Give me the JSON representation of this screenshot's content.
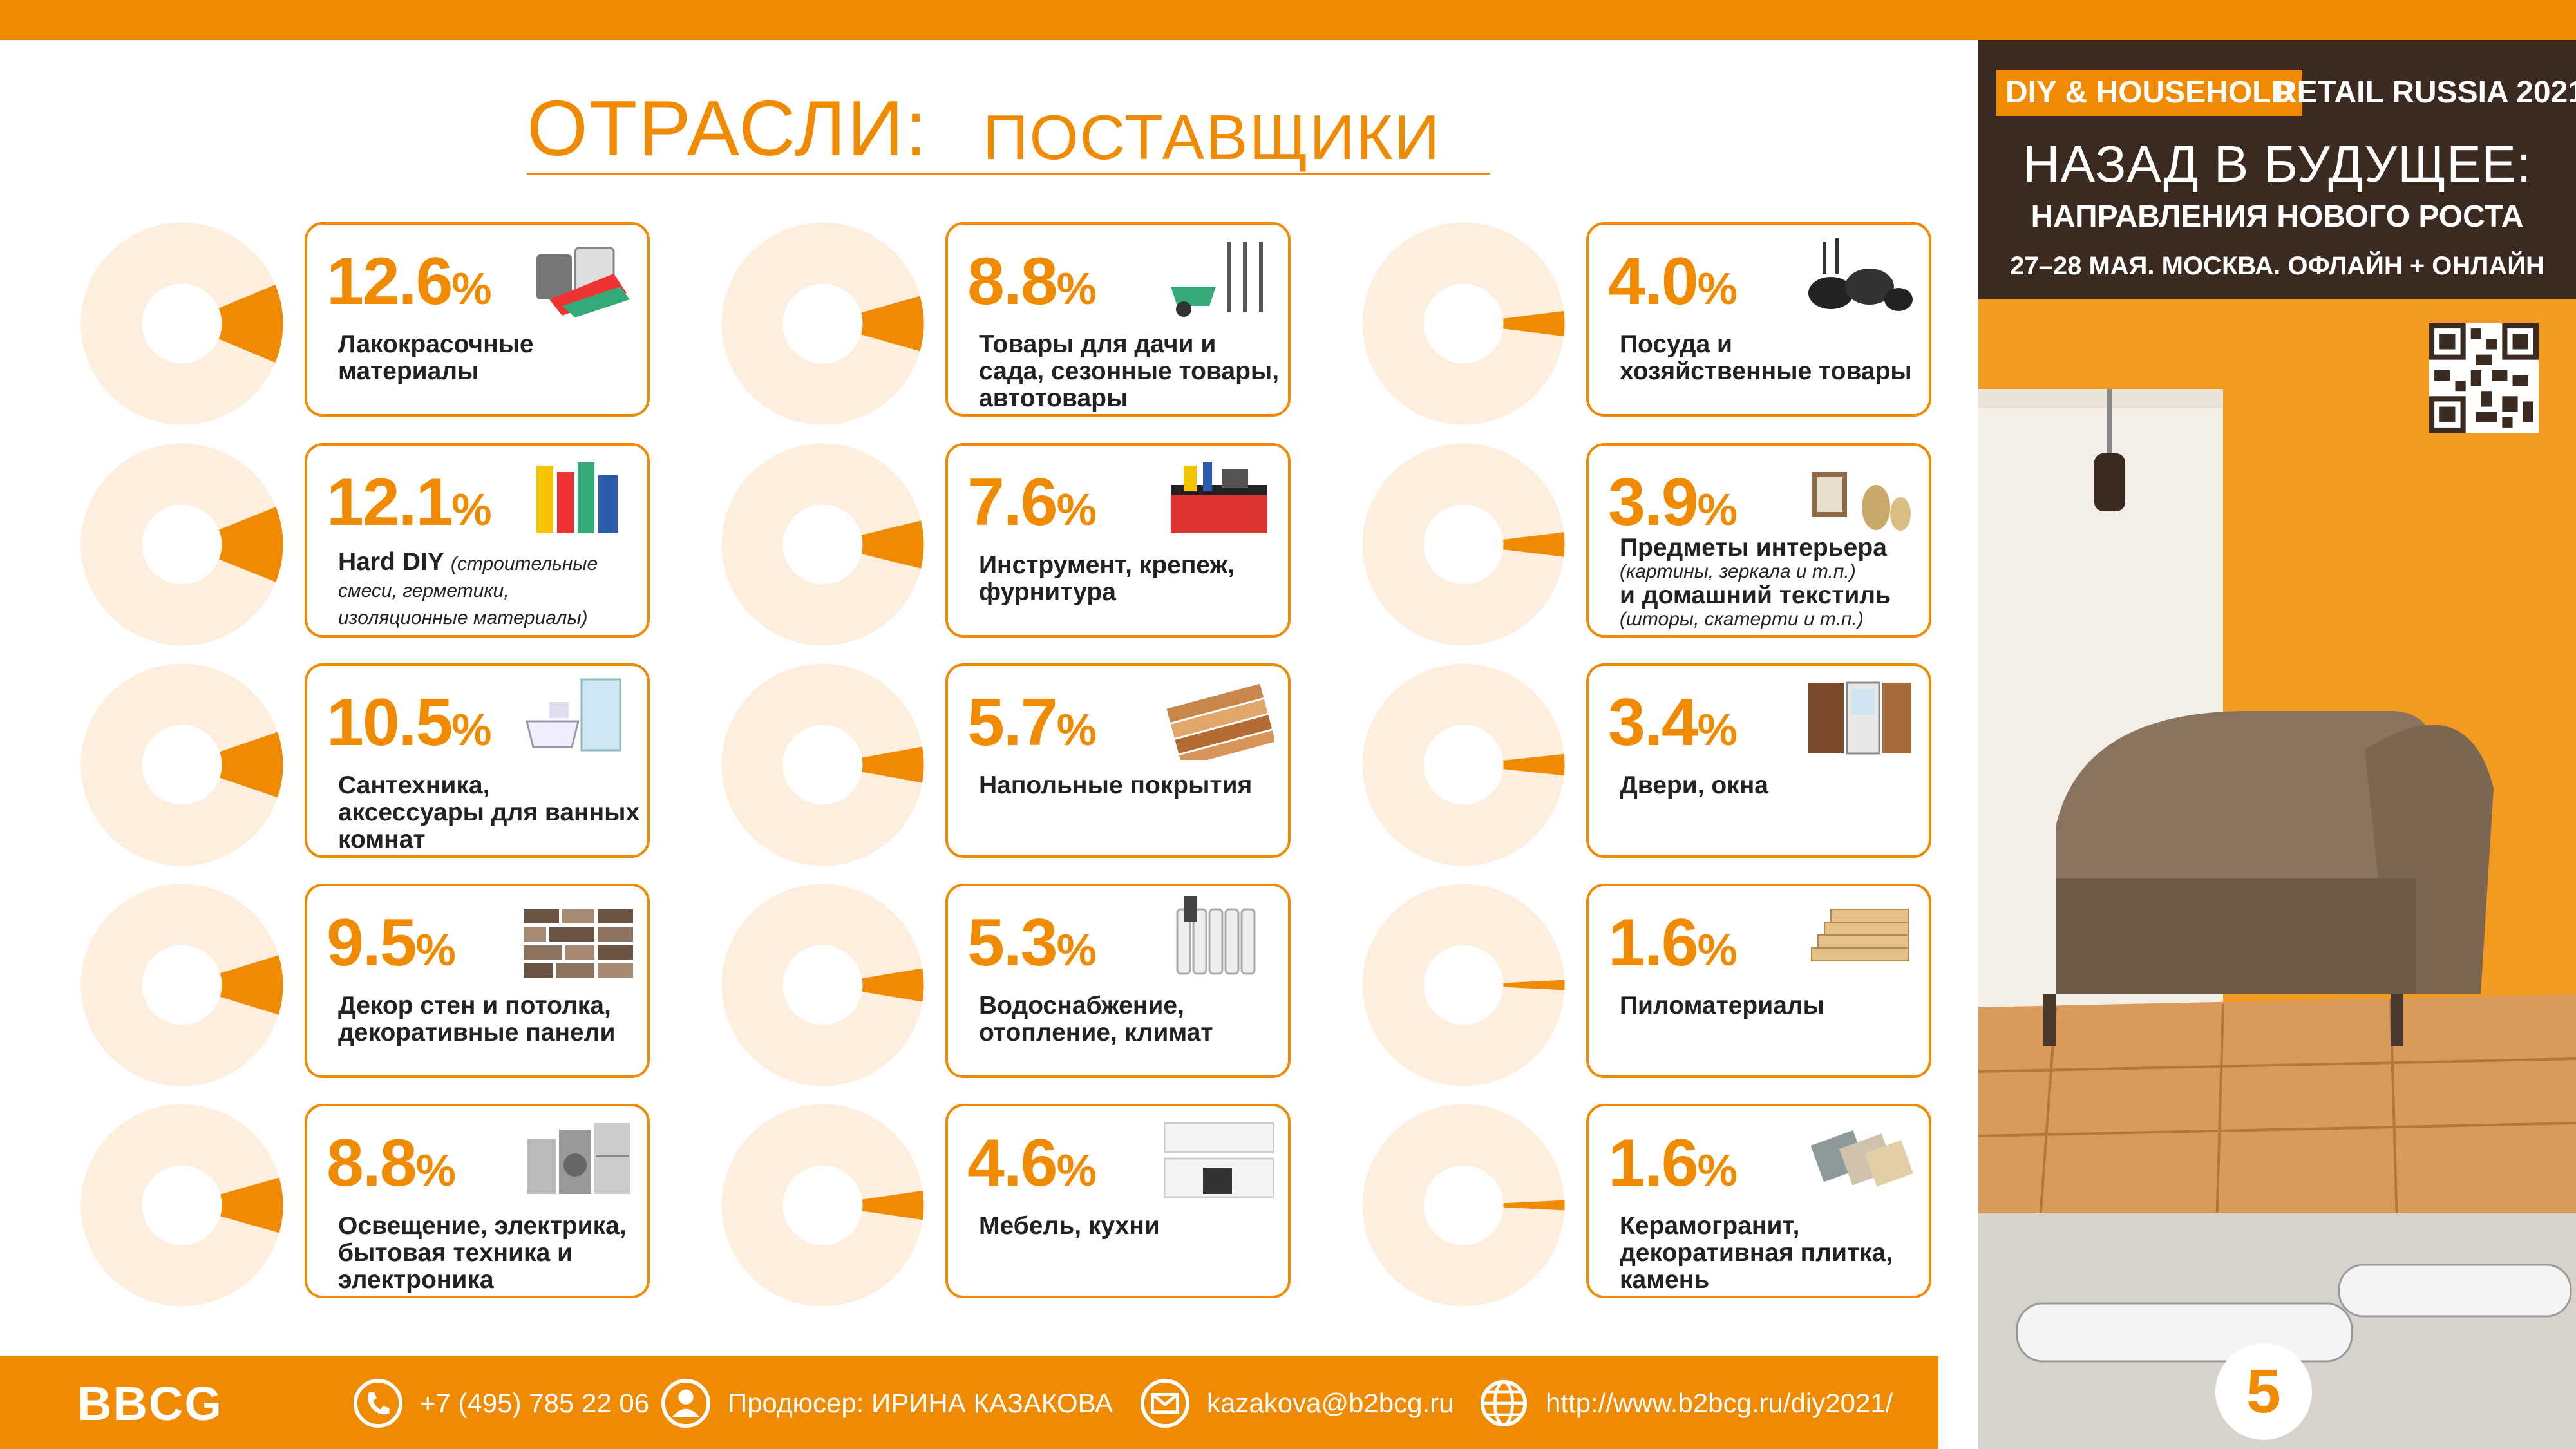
{
  "title": {
    "main": "ОТРАСЛИ:",
    "sub": "ПОСТАВЩИКИ"
  },
  "colors": {
    "accent": "#f08a00",
    "donut_bg": "#fdeede",
    "text": "#222222",
    "dark": "#3a2a20"
  },
  "categories": [
    {
      "pct": "12.6",
      "sign": "%",
      "label": "Лакокрасочные материалы",
      "note": "",
      "share": 12.6,
      "icon": "paint-cans-icon"
    },
    {
      "pct": "12.1",
      "sign": "%",
      "label": "Hard DIY",
      "note": "(строительные смеси, герметики, изоляционные материалы)",
      "share": 12.1,
      "icon": "sealant-tubes-icon"
    },
    {
      "pct": "10.5",
      "sign": "%",
      "label": "Сантехника, аксессуары для ванных комнат",
      "note": "",
      "share": 10.5,
      "icon": "bathroom-fixtures-icon"
    },
    {
      "pct": "9.5",
      "sign": "%",
      "label": "Декор стен и потолка, декоративные панели",
      "note": "",
      "share": 9.5,
      "icon": "wall-panel-icon"
    },
    {
      "pct": "8.8",
      "sign": "%",
      "label": "Освещение, электрика, бытовая техника и электроника",
      "note": "",
      "share": 8.8,
      "icon": "home-appliances-icon"
    },
    {
      "pct": "8.8",
      "sign": "%",
      "label": "Товары для дачи и сада, сезонные товары, автотовары",
      "note": "",
      "share": 8.8,
      "icon": "garden-tools-icon"
    },
    {
      "pct": "7.6",
      "sign": "%",
      "label": "Инструмент, крепеж, фурнитура",
      "note": "",
      "share": 7.6,
      "icon": "toolbox-icon"
    },
    {
      "pct": "5.7",
      "sign": "%",
      "label": "Напольные покрытия",
      "note": "",
      "share": 5.7,
      "icon": "floor-planks-icon"
    },
    {
      "pct": "5.3",
      "sign": "%",
      "label": "Водоснабжение, отопление, климат",
      "note": "",
      "share": 5.3,
      "icon": "radiator-icon"
    },
    {
      "pct": "4.6",
      "sign": "%",
      "label": "Мебель, кухни",
      "note": "",
      "share": 4.6,
      "icon": "kitchen-icon"
    },
    {
      "pct": "4.0",
      "sign": "%",
      "label": "Посуда и хозяйственные товары",
      "note": "",
      "share": 4.0,
      "icon": "cookware-icon"
    },
    {
      "pct": "3.9",
      "sign": "%",
      "label": "Предметы интерьера",
      "note": "(картины, зеркала и т.п.)",
      "label2": "и домашний текстиль",
      "note2": "(шторы, скатерти и т.п.)",
      "share": 3.9,
      "icon": "interior-decor-icon"
    },
    {
      "pct": "3.4",
      "sign": "%",
      "label": "Двери, окна",
      "note": "",
      "share": 3.4,
      "icon": "doors-windows-icon"
    },
    {
      "pct": "1.6",
      "sign": "%",
      "label": "Пиломатериалы",
      "note": "",
      "share": 1.6,
      "icon": "lumber-icon"
    },
    {
      "pct": "1.6",
      "sign": "%",
      "label": "Керамогранит, декоративная плитка, камень",
      "note": "",
      "share": 1.6,
      "icon": "tiles-icon"
    }
  ],
  "side": {
    "brand_a": "DIY & HOUSEHOLD",
    "brand_b": "RETAIL RUSSIA 2021",
    "headline": "НАЗАД В БУДУЩЕЕ:",
    "subheadline": "НАПРАВЛЕНИЯ НОВОГО РОСТА",
    "dates": "27–28 МАЯ. МОСКВА. ОФЛАЙН + ОНЛАЙН",
    "page_number": "5"
  },
  "footer": {
    "logo": "BBCG",
    "phone": "+7 (495) 785 22 06",
    "producer": "Продюсер: ИРИНА КАЗАКОВА",
    "email": "kazakova@b2bcg.ru",
    "url": "http://www.b2bcg.ru/diy2021/"
  }
}
